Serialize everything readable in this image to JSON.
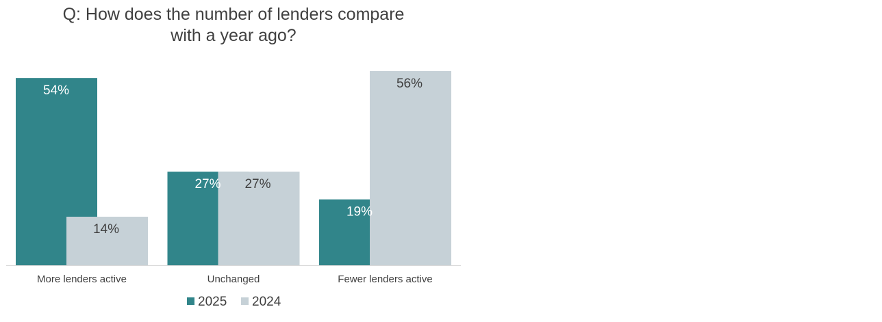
{
  "chart_data": {
    "type": "bar",
    "title": "Q: How does the number of lenders compare with a year ago?",
    "title_lines": [
      "Q: How does the number of lenders compare",
      "with a year ago?"
    ],
    "categories": [
      "More lenders active",
      "Unchanged",
      "Fewer lenders active"
    ],
    "series": [
      {
        "name": "2025",
        "values": [
          54,
          27,
          19
        ],
        "labels": [
          "54%",
          "27%",
          "19%"
        ],
        "color": "#31858a",
        "label_color": "#ffffff"
      },
      {
        "name": "2024",
        "values": [
          14,
          27,
          56
        ],
        "labels": [
          "14%",
          "27%",
          "56%"
        ],
        "color": "#c6d1d7",
        "label_color": "#404040"
      }
    ],
    "xlabel": "",
    "ylabel": "",
    "ylim": [
      0,
      56
    ],
    "grid": false,
    "legend": "bottom-center",
    "value_format": "percent"
  }
}
